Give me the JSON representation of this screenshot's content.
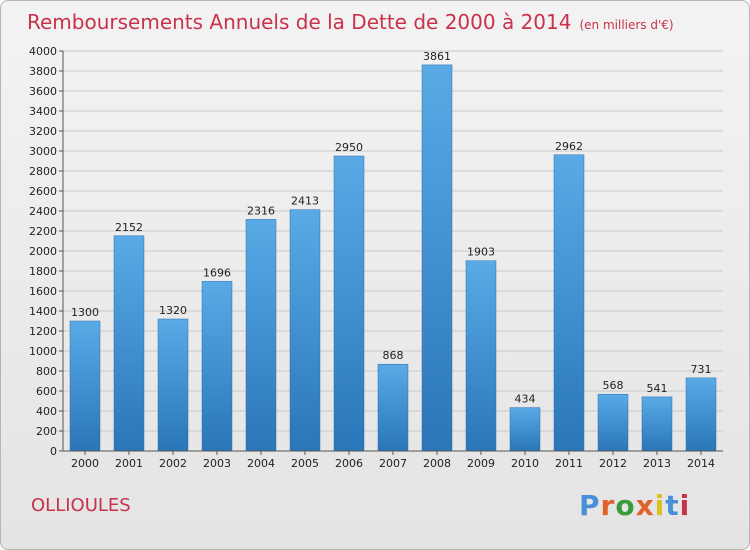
{
  "header": {
    "title": "Remboursements Annuels de la Dette de 2000 à 2014",
    "unit": "(en milliers d'€)"
  },
  "commune": "OLLIOULES",
  "logo": {
    "text": "Proxiti",
    "colors": [
      "#4a90d9",
      "#e0622a",
      "#3a9b3a",
      "#e0622a",
      "#d8c21c",
      "#4a90d9",
      "#c8324a"
    ]
  },
  "colors": {
    "title": "#c8324a",
    "bar_light": "#5aaae6",
    "bar_dark": "#2a76b8"
  },
  "chart_data": {
    "type": "bar",
    "categories": [
      "2000",
      "2001",
      "2002",
      "2003",
      "2004",
      "2005",
      "2006",
      "2007",
      "2008",
      "2009",
      "2010",
      "2011",
      "2012",
      "2013",
      "2014"
    ],
    "values": [
      1300,
      2152,
      1320,
      1696,
      2316,
      2413,
      2950,
      868,
      3861,
      1903,
      434,
      2962,
      568,
      541,
      731
    ],
    "ylim": [
      0,
      4000
    ],
    "yticks": [
      0,
      200,
      400,
      600,
      800,
      1000,
      1200,
      1400,
      1600,
      1800,
      2000,
      2200,
      2400,
      2600,
      2800,
      3000,
      3200,
      3400,
      3600,
      3800,
      4000
    ],
    "grid": true,
    "legend": "none"
  }
}
